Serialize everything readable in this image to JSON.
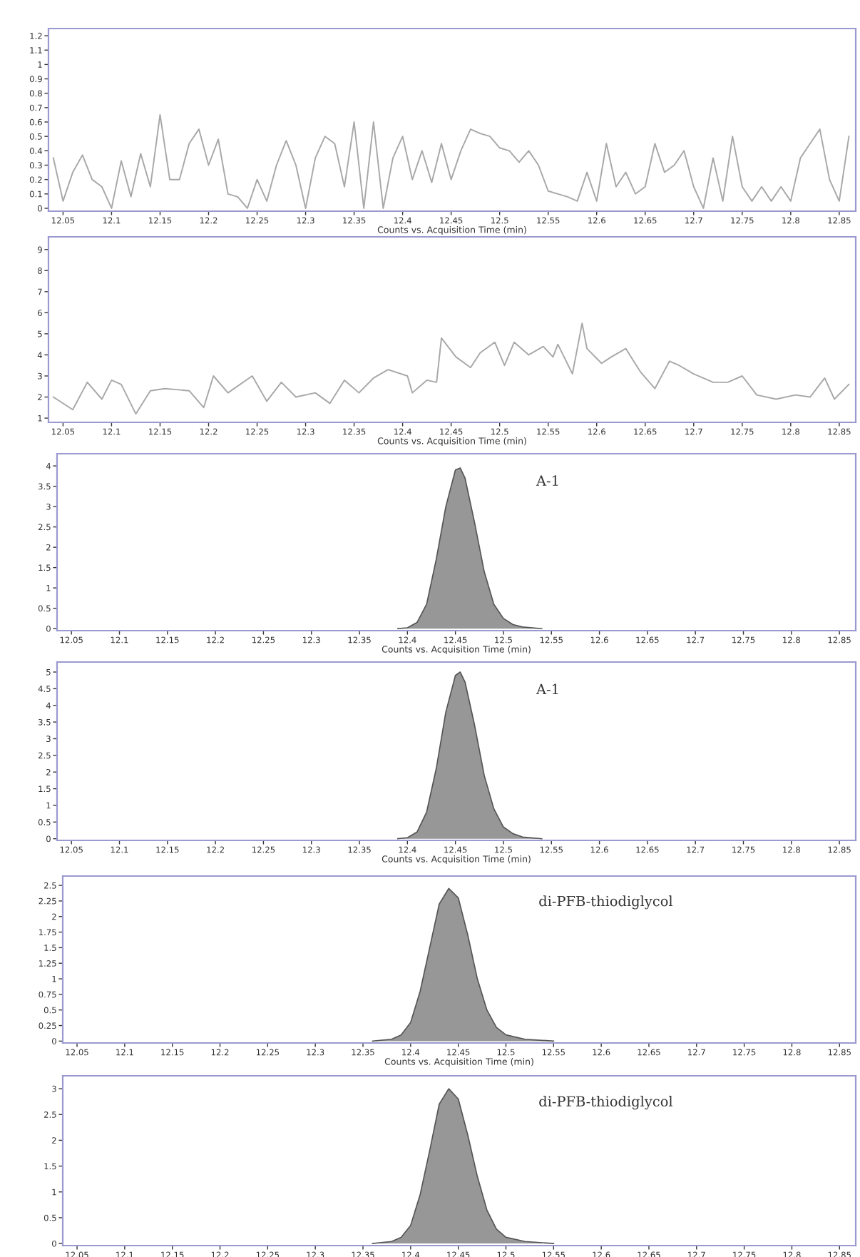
{
  "chart_data": [
    {
      "type": "line",
      "xlabel": "Counts vs. Acquisition Time (min)",
      "xlim": [
        12.035,
        12.867
      ],
      "xticks": [
        12.05,
        12.1,
        12.15,
        12.2,
        12.25,
        12.3,
        12.35,
        12.4,
        12.45,
        12.5,
        12.55,
        12.6,
        12.65,
        12.7,
        12.75,
        12.8,
        12.85
      ],
      "ylim": [
        -0.02,
        1.25
      ],
      "yticks": [
        0,
        0.1,
        0.2,
        0.3,
        0.4,
        0.5,
        0.6,
        0.7,
        0.8,
        0.9,
        1,
        1.1,
        1.2
      ],
      "grid": false,
      "series": [
        {
          "color": "#a8a8a8",
          "x": [
            12.04,
            12.05,
            12.06,
            12.07,
            12.08,
            12.09,
            12.1,
            12.11,
            12.12,
            12.13,
            12.14,
            12.15,
            12.16,
            12.17,
            12.18,
            12.19,
            12.2,
            12.21,
            12.22,
            12.23,
            12.24,
            12.25,
            12.26,
            12.27,
            12.28,
            12.29,
            12.3,
            12.31,
            12.32,
            12.33,
            12.34,
            12.35,
            12.36,
            12.37,
            12.38,
            12.39,
            12.4,
            12.41,
            12.42,
            12.43,
            12.44,
            12.45,
            12.46,
            12.47,
            12.48,
            12.49,
            12.5,
            12.51,
            12.52,
            12.53,
            12.54,
            12.55,
            12.56,
            12.57,
            12.58,
            12.59,
            12.6,
            12.61,
            12.62,
            12.63,
            12.64,
            12.65,
            12.66,
            12.67,
            12.68,
            12.69,
            12.7,
            12.71,
            12.72,
            12.73,
            12.74,
            12.75,
            12.76,
            12.77,
            12.78,
            12.79,
            12.8,
            12.81,
            12.82,
            12.83,
            12.84,
            12.85,
            12.86
          ],
          "values": [
            0.35,
            0.05,
            0.25,
            0.37,
            0.2,
            0.15,
            0.0,
            0.33,
            0.08,
            0.38,
            0.15,
            0.65,
            0.2,
            0.2,
            0.45,
            0.55,
            0.3,
            0.48,
            0.1,
            0.08,
            0.0,
            0.2,
            0.05,
            0.3,
            0.47,
            0.3,
            0.0,
            0.35,
            0.5,
            0.45,
            0.15,
            0.6,
            0.0,
            0.6,
            0.0,
            0.35,
            0.5,
            0.2,
            0.4,
            0.18,
            0.45,
            0.2,
            0.4,
            0.55,
            0.52,
            0.5,
            0.42,
            0.4,
            0.32,
            0.4,
            0.3,
            0.12,
            0.1,
            0.08,
            0.05,
            0.25,
            0.05,
            0.45,
            0.15,
            0.25,
            0.1,
            0.15,
            0.45,
            0.25,
            0.3,
            0.4,
            0.15,
            0.0,
            0.35,
            0.05,
            0.5,
            0.15,
            0.05,
            0.15,
            0.05,
            0.15,
            0.05,
            0.35,
            0.45,
            0.55,
            0.2,
            0.05,
            0.5
          ]
        }
      ]
    },
    {
      "type": "line",
      "xlabel": "Counts vs. Acquisition Time (min)",
      "xlim": [
        12.035,
        12.867
      ],
      "xticks": [
        12.05,
        12.1,
        12.15,
        12.2,
        12.25,
        12.3,
        12.35,
        12.4,
        12.45,
        12.5,
        12.55,
        12.6,
        12.65,
        12.7,
        12.75,
        12.8,
        12.85
      ],
      "ylim": [
        0.8,
        9.6
      ],
      "yticks": [
        1,
        2,
        3,
        4,
        5,
        6,
        7,
        8,
        9
      ],
      "grid": false,
      "series": [
        {
          "color": "#a8a8a8",
          "x": [
            12.04,
            12.06,
            12.075,
            12.09,
            12.1,
            12.11,
            12.125,
            12.14,
            12.155,
            12.18,
            12.195,
            12.205,
            12.22,
            12.245,
            12.26,
            12.275,
            12.29,
            12.31,
            12.325,
            12.34,
            12.355,
            12.37,
            12.385,
            12.405,
            12.41,
            12.425,
            12.435,
            12.44,
            12.455,
            12.47,
            12.48,
            12.495,
            12.505,
            12.515,
            12.53,
            12.545,
            12.555,
            12.56,
            12.575,
            12.585,
            12.59,
            12.605,
            12.615,
            12.63,
            12.645,
            12.66,
            12.675,
            12.685,
            12.7,
            12.72,
            12.735,
            12.75,
            12.765,
            12.785,
            12.805,
            12.82,
            12.835,
            12.845,
            12.86
          ],
          "values": [
            2.0,
            1.4,
            2.7,
            1.9,
            2.8,
            2.6,
            1.2,
            2.3,
            2.4,
            2.3,
            1.5,
            3.0,
            2.2,
            3.0,
            1.8,
            2.7,
            2.0,
            2.2,
            1.7,
            2.8,
            2.2,
            2.9,
            3.3,
            3.0,
            2.2,
            2.8,
            2.7,
            4.8,
            3.9,
            3.4,
            4.1,
            4.6,
            3.5,
            4.6,
            4.0,
            4.4,
            3.9,
            4.5,
            3.1,
            5.5,
            4.3,
            3.6,
            3.9,
            4.3,
            3.2,
            2.4,
            3.7,
            3.5,
            3.1,
            2.7,
            2.7,
            3.0,
            2.1,
            1.9,
            2.1,
            2.0,
            2.9,
            1.9,
            2.6
          ]
        }
      ]
    },
    {
      "type": "area",
      "xlabel": "Counts vs. Acquisition Time (min)",
      "annotations": [
        "A-1"
      ],
      "xlim": [
        12.035,
        12.867
      ],
      "xticks": [
        12.05,
        12.1,
        12.15,
        12.2,
        12.25,
        12.3,
        12.35,
        12.4,
        12.45,
        12.5,
        12.55,
        12.6,
        12.65,
        12.7,
        12.75,
        12.8,
        12.85
      ],
      "ylim": [
        -0.05,
        4.3
      ],
      "yticks": [
        0,
        0.5,
        1,
        1.5,
        2,
        2.5,
        3,
        3.5,
        4
      ],
      "grid": false,
      "series": [
        {
          "color": "#8c8c8c",
          "x": [
            12.39,
            12.4,
            12.41,
            12.42,
            12.43,
            12.44,
            12.45,
            12.455,
            12.46,
            12.47,
            12.48,
            12.49,
            12.5,
            12.51,
            12.52,
            12.54
          ],
          "values": [
            0,
            0.02,
            0.15,
            0.6,
            1.7,
            3.0,
            3.9,
            3.95,
            3.7,
            2.6,
            1.4,
            0.6,
            0.25,
            0.1,
            0.04,
            0
          ]
        }
      ]
    },
    {
      "type": "area",
      "xlabel": "Counts vs. Acquisition Time (min)",
      "annotations": [
        "A-1"
      ],
      "xlim": [
        12.035,
        12.867
      ],
      "xticks": [
        12.05,
        12.1,
        12.15,
        12.2,
        12.25,
        12.3,
        12.35,
        12.4,
        12.45,
        12.5,
        12.55,
        12.6,
        12.65,
        12.7,
        12.75,
        12.8,
        12.85
      ],
      "ylim": [
        -0.05,
        5.3
      ],
      "yticks": [
        0,
        0.5,
        1,
        1.5,
        2,
        2.5,
        3,
        3.5,
        4,
        4.5,
        5
      ],
      "grid": false,
      "series": [
        {
          "color": "#8c8c8c",
          "x": [
            12.39,
            12.4,
            12.41,
            12.42,
            12.43,
            12.44,
            12.45,
            12.455,
            12.46,
            12.47,
            12.48,
            12.49,
            12.5,
            12.51,
            12.52,
            12.54
          ],
          "values": [
            0,
            0.03,
            0.2,
            0.8,
            2.1,
            3.8,
            4.9,
            5.0,
            4.7,
            3.4,
            1.9,
            0.9,
            0.35,
            0.15,
            0.05,
            0
          ]
        }
      ]
    },
    {
      "type": "area",
      "xlabel": "Counts vs. Acquisition Time (min)",
      "annotations": [
        "di-PFB-thiodiglycol"
      ],
      "xlim": [
        12.035,
        12.867
      ],
      "xticks": [
        12.05,
        12.1,
        12.15,
        12.2,
        12.25,
        12.3,
        12.35,
        12.4,
        12.45,
        12.5,
        12.55,
        12.6,
        12.65,
        12.7,
        12.75,
        12.8,
        12.85
      ],
      "ylim": [
        -0.03,
        2.65
      ],
      "yticks": [
        0,
        0.25,
        0.5,
        0.75,
        1,
        1.25,
        1.5,
        1.75,
        2,
        2.25,
        2.5
      ],
      "grid": false,
      "series": [
        {
          "color": "#8c8c8c",
          "x": [
            12.36,
            12.38,
            12.39,
            12.4,
            12.41,
            12.42,
            12.43,
            12.44,
            12.45,
            12.46,
            12.47,
            12.48,
            12.49,
            12.5,
            12.52,
            12.55
          ],
          "values": [
            0,
            0.03,
            0.1,
            0.3,
            0.8,
            1.5,
            2.2,
            2.45,
            2.3,
            1.7,
            1.0,
            0.5,
            0.22,
            0.1,
            0.03,
            0
          ]
        }
      ]
    },
    {
      "type": "area",
      "annotations": [
        "di-PFB-thiodiglycol"
      ],
      "xlim": [
        12.035,
        12.867
      ],
      "xticks": [
        12.05,
        12.1,
        12.15,
        12.2,
        12.25,
        12.3,
        12.35,
        12.4,
        12.45,
        12.5,
        12.55,
        12.6,
        12.65,
        12.7,
        12.75,
        12.8,
        12.85
      ],
      "ylim": [
        -0.04,
        3.25
      ],
      "yticks": [
        0,
        0.5,
        1,
        1.5,
        2,
        2.5,
        3
      ],
      "grid": false,
      "series": [
        {
          "color": "#8c8c8c",
          "x": [
            12.36,
            12.38,
            12.39,
            12.4,
            12.41,
            12.42,
            12.43,
            12.44,
            12.45,
            12.46,
            12.47,
            12.48,
            12.49,
            12.5,
            12.52,
            12.55
          ],
          "values": [
            0,
            0.04,
            0.12,
            0.35,
            0.95,
            1.8,
            2.7,
            3.0,
            2.8,
            2.1,
            1.3,
            0.65,
            0.28,
            0.12,
            0.04,
            0
          ]
        }
      ]
    }
  ]
}
